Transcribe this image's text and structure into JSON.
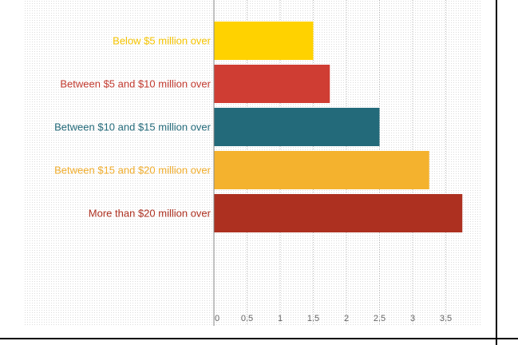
{
  "chart_data": {
    "type": "bar",
    "orientation": "horizontal",
    "categories": [
      "Below $5 million over",
      "Between $5 and $10 million over",
      "Between $10 and $15 million over",
      "Between $15 and $20 million over",
      "More than $20 million over"
    ],
    "values": [
      1.5,
      1.75,
      2.5,
      3.25,
      3.75
    ],
    "colors": [
      "#ffd200",
      "#cf3d33",
      "#236a7a",
      "#f4b22e",
      "#ad3020"
    ],
    "label_colors": [
      "#f5c400",
      "#c23a2f",
      "#236a7a",
      "#f0ad2c",
      "#ad3020"
    ],
    "x_ticks": [
      "0",
      "0.5",
      "1",
      "1.5",
      "2",
      "2.5",
      "3",
      "3.5"
    ],
    "xlim": [
      0,
      3.75
    ],
    "grid": true,
    "legend": "none"
  }
}
